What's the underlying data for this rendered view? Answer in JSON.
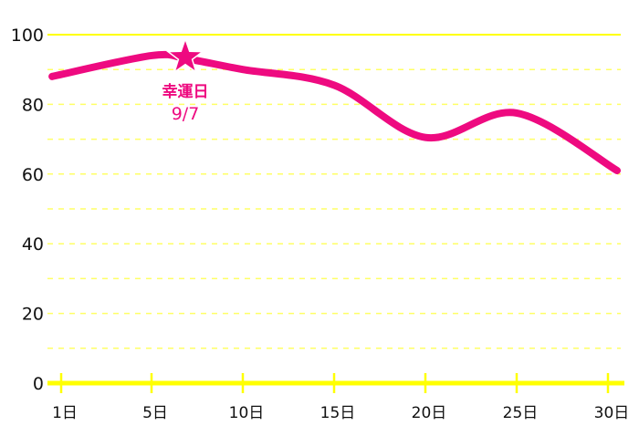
{
  "chart_data": {
    "type": "line",
    "title": "",
    "xlabel": "",
    "ylabel": "",
    "ylim": [
      0,
      100
    ],
    "y_ticks": [
      "0",
      "20",
      "40",
      "60",
      "80",
      "100"
    ],
    "x_ticks": [
      {
        "value": 1,
        "label": "1日"
      },
      {
        "value": 5,
        "label": "5日"
      },
      {
        "value": 10,
        "label": "10日"
      },
      {
        "value": 15,
        "label": "15日"
      },
      {
        "value": 20,
        "label": "20日"
      },
      {
        "value": 25,
        "label": "25日"
      },
      {
        "value": 30,
        "label": "30日"
      }
    ],
    "grid": "horizontal dashed every 10",
    "series": [
      {
        "points": [
          [
            0.6,
            88
          ],
          [
            5,
            94
          ],
          [
            7,
            93
          ],
          [
            10,
            90
          ],
          [
            15,
            85.5
          ],
          [
            20,
            70.5
          ],
          [
            25,
            77.5
          ],
          [
            30.5,
            61
          ]
        ]
      }
    ],
    "annotation": {
      "x": 7,
      "y": 93,
      "marker": "star-icon",
      "label": "幸運日",
      "sublabel": "9/7"
    },
    "colors": {
      "line": "#ee0a80",
      "grid": "#ffff00",
      "grid_minor": "#ffff66",
      "axis": "#ffff00"
    }
  }
}
